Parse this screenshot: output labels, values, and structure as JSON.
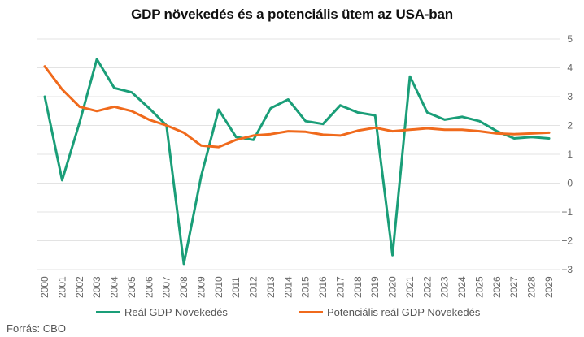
{
  "chart_data": {
    "type": "line",
    "title": "GDP növekedés és a potenciális ütem az USA-ban",
    "source": "Forrás: CBO",
    "x": [
      "2000",
      "2001",
      "2002",
      "2003",
      "2004",
      "2005",
      "2006",
      "2007",
      "2008",
      "2009",
      "2010",
      "2011",
      "2012",
      "2013",
      "2014",
      "2015",
      "2016",
      "2017",
      "2018",
      "2019",
      "2020",
      "2021",
      "2022",
      "2023",
      "2024",
      "2025",
      "2026",
      "2027",
      "2028",
      "2029"
    ],
    "series": [
      {
        "name": "Reál GDP Növekedés",
        "color": "#1a9e78",
        "values": [
          3.0,
          0.1,
          2.1,
          4.3,
          3.3,
          3.15,
          2.6,
          2.0,
          -2.8,
          0.25,
          2.55,
          1.6,
          1.5,
          2.6,
          2.9,
          2.15,
          2.05,
          2.7,
          2.45,
          2.35,
          -2.5,
          3.7,
          2.45,
          2.2,
          2.3,
          2.15,
          1.8,
          1.55,
          1.6,
          1.55
        ]
      },
      {
        "name": "Potenciális reál GDP Növekedés",
        "color": "#f06a1c",
        "values": [
          4.05,
          3.25,
          2.65,
          2.5,
          2.65,
          2.5,
          2.2,
          2.0,
          1.75,
          1.3,
          1.25,
          1.5,
          1.65,
          1.7,
          1.8,
          1.78,
          1.68,
          1.65,
          1.82,
          1.92,
          1.8,
          1.85,
          1.9,
          1.85,
          1.85,
          1.8,
          1.72,
          1.7,
          1.72,
          1.75
        ]
      }
    ],
    "yticks": [
      5,
      4,
      3,
      2,
      1,
      0,
      -1,
      -2,
      -3
    ],
    "ylim": [
      -3,
      5
    ],
    "grid": true,
    "legend_position": "bottom"
  }
}
